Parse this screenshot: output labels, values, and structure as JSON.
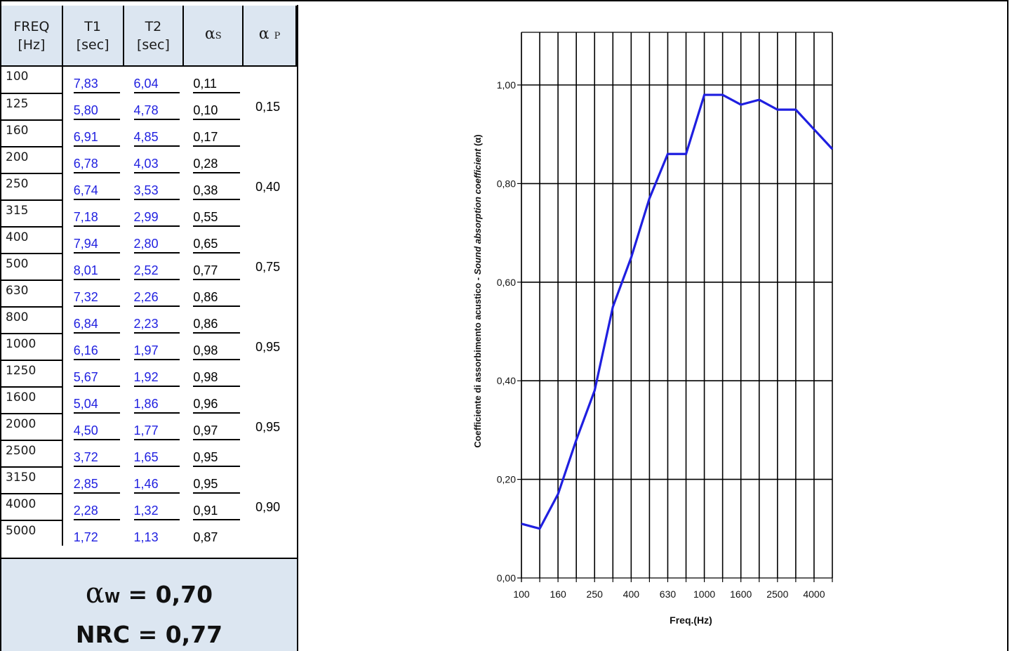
{
  "table": {
    "headers": [
      {
        "line1": "FREQ",
        "line2": "[Hz]"
      },
      {
        "line1": "T1",
        "line2": "[sec]"
      },
      {
        "line1": "T2",
        "line2": "[sec]"
      },
      {
        "symbol": "α",
        "sub": "S"
      },
      {
        "symbol": "α",
        "sub": "P"
      }
    ],
    "rows": [
      {
        "freq": "100",
        "t1": "7,83",
        "t2": "6,04",
        "as": "0,11"
      },
      {
        "freq": "125",
        "t1": "5,80",
        "t2": "4,78",
        "as": "0,10"
      },
      {
        "freq": "160",
        "t1": "6,91",
        "t2": "4,85",
        "as": "0,17"
      },
      {
        "freq": "200",
        "t1": "6,78",
        "t2": "4,03",
        "as": "0,28"
      },
      {
        "freq": "250",
        "t1": "6,74",
        "t2": "3,53",
        "as": "0,38"
      },
      {
        "freq": "315",
        "t1": "7,18",
        "t2": "2,99",
        "as": "0,55"
      },
      {
        "freq": "400",
        "t1": "7,94",
        "t2": "2,80",
        "as": "0,65"
      },
      {
        "freq": "500",
        "t1": "8,01",
        "t2": "2,52",
        "as": "0,77"
      },
      {
        "freq": "630",
        "t1": "7,32",
        "t2": "2,26",
        "as": "0,86"
      },
      {
        "freq": "800",
        "t1": "6,84",
        "t2": "2,23",
        "as": "0,86"
      },
      {
        "freq": "1000",
        "t1": "6,16",
        "t2": "1,97",
        "as": "0,98"
      },
      {
        "freq": "1250",
        "t1": "5,67",
        "t2": "1,92",
        "as": "0,98"
      },
      {
        "freq": "1600",
        "t1": "5,04",
        "t2": "1,86",
        "as": "0,96"
      },
      {
        "freq": "2000",
        "t1": "4,50",
        "t2": "1,77",
        "as": "0,97"
      },
      {
        "freq": "2500",
        "t1": "3,72",
        "t2": "1,65",
        "as": "0,95"
      },
      {
        "freq": "3150",
        "t1": "2,85",
        "t2": "1,46",
        "as": "0,95"
      },
      {
        "freq": "4000",
        "t1": "2,28",
        "t2": "1,32",
        "as": "0,91"
      },
      {
        "freq": "5000",
        "t1": "1,72",
        "t2": "1,13",
        "as": "0,87"
      }
    ],
    "alpha_p": [
      "0,15",
      "0,40",
      "0,75",
      "0,95",
      "0,95",
      "0,90"
    ]
  },
  "summary": {
    "alpha_w_symbol": "α",
    "alpha_w_sub": "W",
    "alpha_w_text": " = 0,70",
    "nrc_text": "NRC = 0,77"
  },
  "colors": {
    "header_bg": "#dce6f1",
    "t_values": "#1f1fe0",
    "series_line": "#1f1fe0"
  },
  "chart_data": {
    "type": "line",
    "title": "",
    "xlabel": "Freq.(Hz)",
    "ylabel": "Coefficiente di assorbimento acustico - Sound absorption coefficient (α)",
    "ylabel_plain": "Coefficiente di assorbimento acustico - ",
    "ylabel_italic": "Sound absorption coefficient",
    "ylabel_suffix": " (α)",
    "x": [
      "100",
      "125",
      "160",
      "200",
      "250",
      "315",
      "400",
      "500",
      "630",
      "800",
      "1000",
      "1250",
      "1600",
      "2000",
      "2500",
      "3150",
      "4000",
      "5000"
    ],
    "x_tick_labels": [
      "100",
      "160",
      "250",
      "400",
      "630",
      "1000",
      "1600",
      "2500",
      "4000"
    ],
    "y_tick_labels": [
      "0,00",
      "0,20",
      "0,40",
      "0,60",
      "0,80",
      "1,00"
    ],
    "ylim": [
      0,
      1.0
    ],
    "grid": true,
    "series": [
      {
        "values": [
          0.11,
          0.1,
          0.17,
          0.28,
          0.38,
          0.55,
          0.65,
          0.77,
          0.86,
          0.86,
          0.98,
          0.98,
          0.96,
          0.97,
          0.95,
          0.95,
          0.91,
          0.87
        ]
      }
    ]
  }
}
